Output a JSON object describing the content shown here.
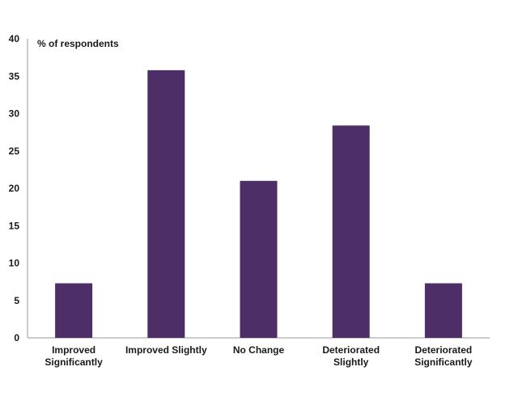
{
  "chart_data": {
    "type": "bar",
    "unit_label": "% of respondents",
    "categories": [
      [
        "Improved",
        "Significantly"
      ],
      [
        "Improved Slightly"
      ],
      [
        "No Change"
      ],
      [
        "Deteriorated",
        "Slightly"
      ],
      [
        "Deteriorated",
        "Significantly"
      ]
    ],
    "values": [
      7.3,
      35.8,
      21.0,
      28.4,
      7.3
    ],
    "ylim": [
      0,
      40
    ],
    "yticks": [
      0,
      5,
      10,
      15,
      20,
      25,
      30,
      35,
      40
    ],
    "grid": false,
    "legend": "none",
    "colors": {
      "bar": "#4e2e66",
      "axis": "#9a9a9a"
    }
  }
}
